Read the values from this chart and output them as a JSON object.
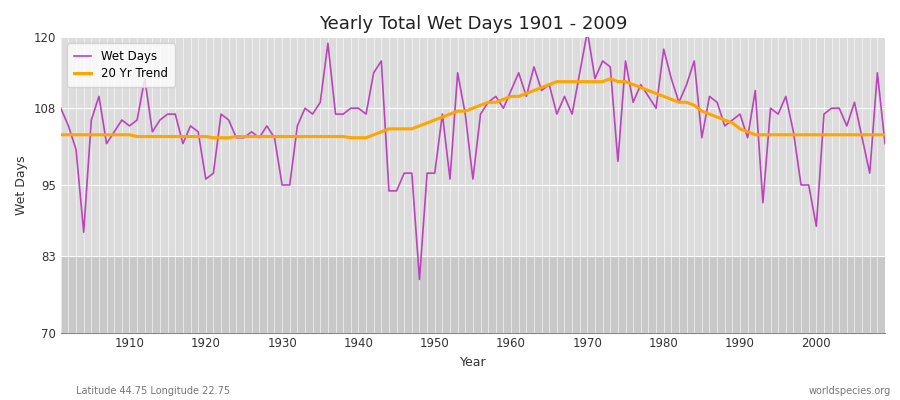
{
  "title": "Yearly Total Wet Days 1901 - 2009",
  "xlabel": "Year",
  "ylabel": "Wet Days",
  "footnote_left": "Latitude 44.75 Longitude 22.75",
  "footnote_right": "worldspecies.org",
  "legend_wet": "Wet Days",
  "legend_trend": "20 Yr Trend",
  "wet_color": "#BB44BB",
  "trend_color": "#FFA500",
  "bg_upper_color": "#DCDCDC",
  "bg_lower_color": "#C8C8C8",
  "ylim": [
    70,
    120
  ],
  "yticks": [
    70,
    83,
    95,
    108,
    120
  ],
  "years": [
    1901,
    1902,
    1903,
    1904,
    1905,
    1906,
    1907,
    1908,
    1909,
    1910,
    1911,
    1912,
    1913,
    1914,
    1915,
    1916,
    1917,
    1918,
    1919,
    1920,
    1921,
    1922,
    1923,
    1924,
    1925,
    1926,
    1927,
    1928,
    1929,
    1930,
    1931,
    1932,
    1933,
    1934,
    1935,
    1936,
    1937,
    1938,
    1939,
    1940,
    1941,
    1942,
    1943,
    1944,
    1945,
    1946,
    1947,
    1948,
    1949,
    1950,
    1951,
    1952,
    1953,
    1954,
    1955,
    1956,
    1957,
    1958,
    1959,
    1960,
    1961,
    1962,
    1963,
    1964,
    1965,
    1966,
    1967,
    1968,
    1969,
    1970,
    1971,
    1972,
    1973,
    1974,
    1975,
    1976,
    1977,
    1978,
    1979,
    1980,
    1981,
    1982,
    1983,
    1984,
    1985,
    1986,
    1987,
    1988,
    1989,
    1990,
    1991,
    1992,
    1993,
    1994,
    1995,
    1996,
    1997,
    1998,
    1999,
    2000,
    2001,
    2002,
    2003,
    2004,
    2005,
    2006,
    2007,
    2008,
    2009
  ],
  "wet_days": [
    108,
    105,
    101,
    87,
    106,
    110,
    102,
    104,
    106,
    105,
    106,
    113,
    104,
    106,
    107,
    107,
    102,
    105,
    104,
    96,
    97,
    107,
    106,
    103,
    103,
    104,
    103,
    105,
    103,
    95,
    95,
    105,
    108,
    107,
    109,
    119,
    107,
    107,
    108,
    108,
    107,
    114,
    116,
    94,
    94,
    97,
    97,
    79,
    97,
    97,
    107,
    96,
    114,
    107,
    96,
    107,
    109,
    110,
    108,
    111,
    114,
    110,
    115,
    111,
    112,
    107,
    110,
    107,
    114,
    121,
    113,
    116,
    115,
    99,
    116,
    109,
    112,
    110,
    108,
    118,
    113,
    109,
    112,
    116,
    103,
    110,
    109,
    105,
    106,
    107,
    103,
    111,
    92,
    108,
    107,
    110,
    104,
    95,
    95,
    88,
    107,
    108,
    108,
    105,
    109,
    103,
    97,
    114,
    102
  ],
  "trend": [
    103.5,
    103.5,
    103.5,
    103.5,
    103.5,
    103.5,
    103.5,
    103.5,
    103.5,
    103.5,
    103.2,
    103.2,
    103.2,
    103.2,
    103.2,
    103.2,
    103.2,
    103.2,
    103.2,
    103.2,
    103.0,
    103.0,
    103.0,
    103.2,
    103.2,
    103.2,
    103.2,
    103.2,
    103.2,
    103.2,
    103.2,
    103.2,
    103.2,
    103.2,
    103.2,
    103.2,
    103.2,
    103.2,
    103.0,
    103.0,
    103.0,
    103.5,
    104.0,
    104.5,
    104.5,
    104.5,
    104.5,
    105.0,
    105.5,
    106.0,
    106.5,
    107.0,
    107.5,
    107.5,
    108.0,
    108.5,
    109.0,
    109.0,
    109.5,
    110.0,
    110.0,
    110.5,
    111.0,
    111.5,
    112.0,
    112.5,
    112.5,
    112.5,
    112.5,
    112.5,
    112.5,
    112.5,
    113.0,
    112.5,
    112.5,
    112.0,
    111.5,
    111.0,
    110.5,
    110.0,
    109.5,
    109.0,
    109.0,
    108.5,
    107.5,
    107.0,
    106.5,
    106.0,
    105.5,
    104.5,
    104.0,
    103.5,
    103.5,
    103.5,
    103.5,
    103.5,
    103.5,
    103.5,
    103.5,
    103.5,
    103.5,
    103.5,
    103.5,
    103.5,
    103.5,
    103.5,
    103.5,
    103.5,
    103.5
  ]
}
